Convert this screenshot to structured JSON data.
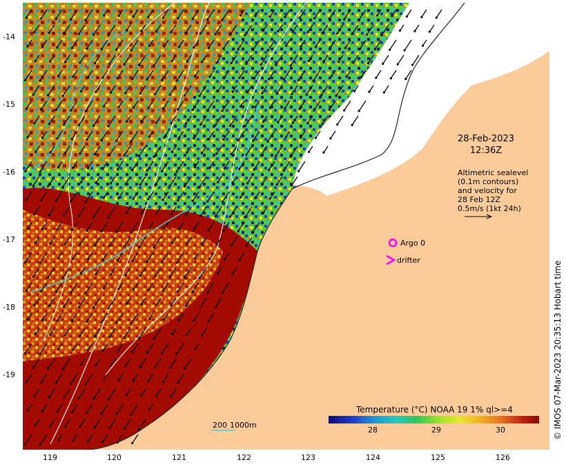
{
  "y_ticks": [
    "-14",
    "-15",
    "-16",
    "-17",
    "-18",
    "-19"
  ],
  "x_ticks": [
    "119",
    "120",
    "121",
    "122",
    "123",
    "124",
    "125",
    "126"
  ],
  "timestamp": {
    "date": "28-Feb-2023",
    "time": "12:36Z"
  },
  "altimetry_note": [
    "Altimetric sealevel",
    "(0.1m contours)",
    "and velocity for",
    "28 Feb 12Z",
    "0.5m/s (1kt 24h)"
  ],
  "legend": {
    "argo_label": "Argo 0",
    "drifter_label": "drifter"
  },
  "colorbar": {
    "title": "Temperature (°C) NOAA 19 1% ql>=4",
    "ticks": [
      "28",
      "29",
      "30"
    ]
  },
  "scale_bar": {
    "label_a": "200",
    "label_b": "1000m"
  },
  "copyright": "© IMOS 07-Mar-2023 20:35:13 Hobart time",
  "colors": {
    "land": "#fccb9a",
    "hot": "#a30a00",
    "cold": "#0b1a8a",
    "mid": "#2fc24b",
    "vector": "#000000",
    "argo": "#ff00ff",
    "contour_cyan": "#3fd0e0"
  }
}
